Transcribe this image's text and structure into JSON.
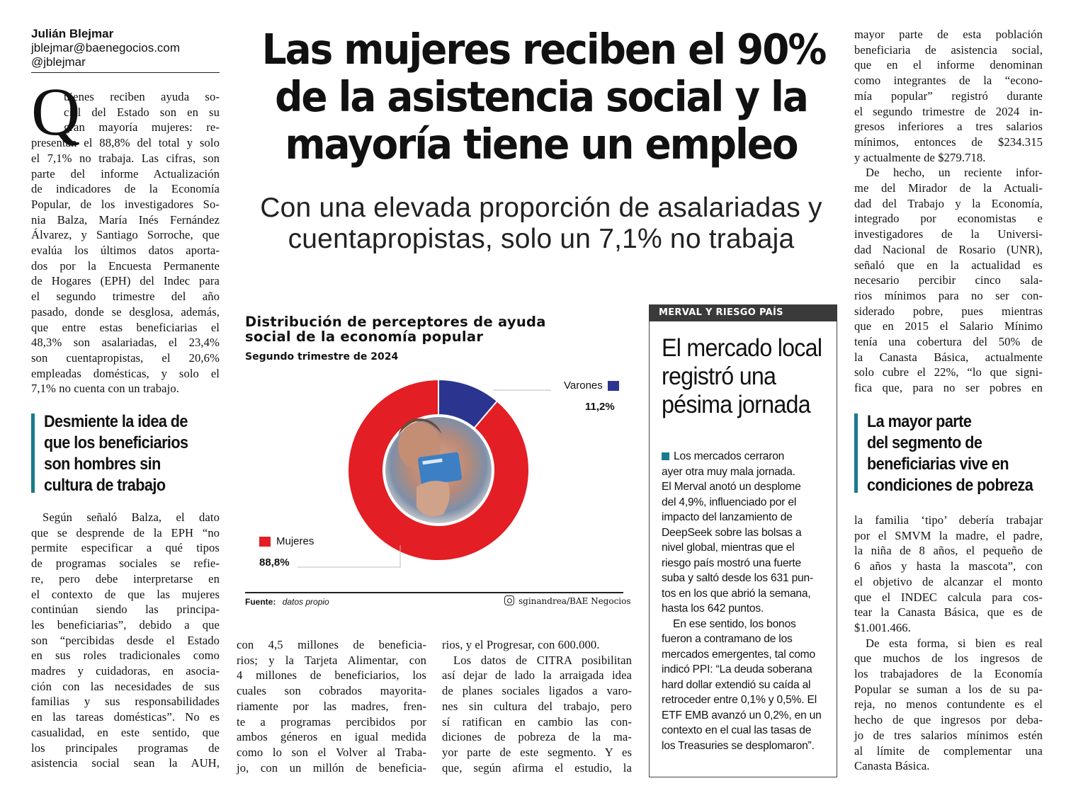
{
  "byline": {
    "name": "Julián Blejmar",
    "email": "jblejmar@baenegocios.com",
    "handle": "@jblejmar"
  },
  "headline": [
    "Las mujeres reciben el 90%",
    "de la asistencia social y la",
    "mayoría tiene un empleo"
  ],
  "subtitle": [
    "Con una elevada proporción de asalariadas y",
    "cuentapropistas, solo un 7,1% no trabaja"
  ],
  "dropcap": "Q",
  "col1_intro": [
    "uienes reciben ayuda so-",
    "cial del Estado son en su",
    "gran mayoría mujeres: re-",
    "presentan el 88,8% del total y solo",
    "el 7,1% no trabaja. Las cifras, son",
    "parte del informe Actualización",
    "de indicadores de la Economía",
    "Popular, de los investigadores So-",
    "nia Balza, María Inés Fernández",
    "Álvarez, y Santiago Sorroche, que",
    "evalúa los últimos datos aporta-",
    "dos por la Encuesta Permanente",
    "de Hogares (EPH) del Indec para",
    "el segundo trimestre del año",
    "pasado, donde se desglosa, además,",
    "que entre estas beneficiarias el",
    "48,3% son asalariadas, el 23,4%",
    "son cuentapropistas, el 20,6%",
    "empleadas domésticas, y solo el",
    "7,1% no cuenta con un trabajo."
  ],
  "pull_quote_1": [
    "Desmiente la idea de",
    "que los beneficiarios",
    "son hombres sin",
    "cultura de trabajo"
  ],
  "col1_cont": [
    "Según señaló Balza, el dato",
    "que se desprende de la EPH “no",
    "permite especificar a qué tipos",
    "de programas sociales se refie-",
    "re, pero debe interpretarse en",
    "el contexto de que las mujeres",
    "continúan siendo las principa-",
    "les beneficiarias”, debido a que",
    "son “percibidas desde el Estado",
    "en sus roles tradicionales como",
    "madres y cuidadoras, en asocia-",
    "ción con las necesidades de sus",
    "familias y sus responsabilidades",
    "en las tareas domésticas”. No es",
    "casualidad, en este sentido, que",
    "los principales programas de",
    "asistencia social sean la AUH,"
  ],
  "col2": [
    "con 4,5 millones de beneficia-",
    "rios; y la Tarjeta Alimentar, con",
    "4 millones de beneficiarios, los",
    "cuales son cobrados mayorita-",
    "riamente por las madres, fren-",
    "te a programas percibidos por",
    "ambos géneros en igual medida",
    "como lo son el Volver al Traba-",
    "jo, con un millón de beneficia-"
  ],
  "col3": [
    "rios, y el Progresar, con 600.000.",
    "Los datos de CITRA posibilitan",
    "así dejar de lado la arraigada idea",
    "de planes sociales ligados a varo-",
    "nes sin cultura del trabajo, pero",
    "sí ratifican en cambio las con-",
    "diciones de pobreza de la ma-",
    "yor parte de este segmento. Y es",
    "que, según afirma el estudio, la"
  ],
  "col5_top": [
    "mayor parte de esta población",
    "beneficiaria de asistencia social,",
    "que en el informe denominan",
    "como integrantes de la “econo-",
    "mía popular” registró durante",
    "el segundo trimestre de 2024 in-",
    "gresos inferiores a tres salarios",
    "mínimos, entonces de $234.315",
    "y actualmente de $279.718.",
    "De hecho, un reciente infor-",
    "me del Mirador de la Actuali-",
    "dad del Trabajo y la Economía,",
    "integrado por economistas e",
    "investigadores de la Universi-",
    "dad Nacional de Rosario (UNR),",
    "señaló que en la actualidad es",
    "necesario percibir cinco sala-",
    "rios mínimos para no ser con-",
    "siderado pobre, pues mientras",
    "que en 2015 el Salario Mínimo",
    "tenía una cobertura del 50% de",
    "la Canasta Básica, actualmente",
    "solo cubre el 22%, “lo que signi-",
    "fica que, para no ser pobres en"
  ],
  "pull_quote_2": [
    "La mayor parte",
    "del segmento de",
    "beneficiarias vive en",
    "condiciones de pobreza"
  ],
  "col5_bottom": [
    "la familia ‘tipo’ debería trabajar",
    "por el SMVM la madre, el padre,",
    "la niña de 8 años, el pequeño de",
    "6 años y hasta la mascota”, con",
    "el objetivo de alcanzar el monto",
    "que el INDEC calcula para cos-",
    "tear la Canasta Básica, que es de",
    "$1.001.466.",
    "De esta forma, si bien es real",
    "que muchos de los ingresos de",
    "los trabajadores de la Economía",
    "Popular se suman a los de su pa-",
    "reja, no menos contundente es el",
    "hecho de que ingresos por deba-",
    "jo de tres salarios mínimos estén",
    "al límite de complementar una",
    "Canasta Básica."
  ],
  "sidebar": {
    "section": "MERVAL Y RIESGO PAÍS",
    "title": [
      "El mercado local",
      "registró una",
      "pésima jornada"
    ],
    "text": [
      "Los mercados cerraron",
      "ayer otra muy mala jornada.",
      "El Merval anotó un desplome",
      "del 4,9%, influenciado por el",
      "impacto del lanzamiento de",
      "DeepSeek sobre las bolsas a",
      "nivel global, mientras que el",
      "riesgo país mostró una fuerte",
      "suba y saltó desde los 631 pun-",
      "tos en los que abrió la semana,",
      "hasta los 642 puntos.",
      "En ese sentido, los bonos",
      "fueron a contramano de los",
      "mercados emergentes, tal como",
      "indicó PPI: “La deuda soberana",
      "hard dollar extendió su caída al",
      "retroceder entre 0,1% y 0,5%. El",
      "ETF EMB avanzó un 0,2%, en un",
      "contexto en el cual las tasas de",
      "los Treasuries se desplomaron”."
    ],
    "accent_color": "#1a7a8c"
  },
  "chart_data": {
    "type": "pie",
    "title": "Distribución de perceptores de ayuda social de la economía popular",
    "subtitle": "Segundo trimestre de 2024",
    "categories": [
      "Varones",
      "Mujeres"
    ],
    "values": [
      11.2,
      88.8
    ],
    "value_labels": [
      "11,2%",
      "88,8%"
    ],
    "colors": [
      "#2b3590",
      "#e31e24"
    ],
    "source_label": "Fuente:",
    "source": "datos propio",
    "credit": "sginandrea/BAE Negocios"
  }
}
